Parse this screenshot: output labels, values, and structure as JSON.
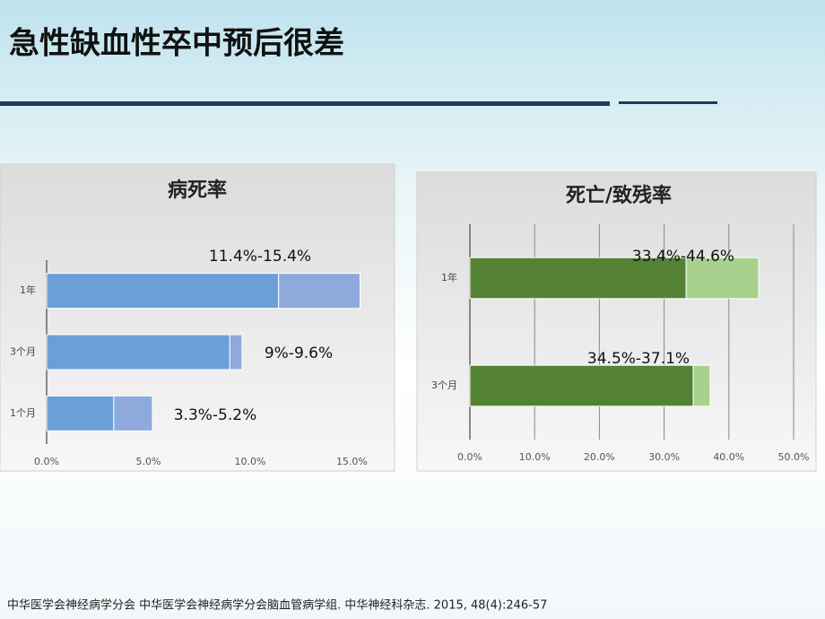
{
  "title": "急性缺血性卒中预后很差",
  "chart_data": [
    {
      "type": "bar",
      "orientation": "horizontal",
      "stacked": true,
      "title": "病死率",
      "categories": [
        "1年",
        "3个月",
        "1个月"
      ],
      "series": [
        {
          "color": "#6a9fd8",
          "values": [
            11.4,
            9,
            3.3
          ]
        },
        {
          "color": "#8eaadc",
          "values": [
            4.0,
            0.6,
            1.9
          ]
        }
      ],
      "annotations": [
        "11.4%-15.4%",
        "9%-9.6%",
        "3.3%-5.2%"
      ],
      "xlim": [
        0,
        16.7
      ],
      "xticks": [
        {
          "value": 0,
          "label": "0.0%"
        },
        {
          "value": 5,
          "label": "5.0%"
        },
        {
          "value": 10,
          "label": "10.0%"
        },
        {
          "value": 15,
          "label": "15.0%"
        }
      ],
      "grid": false
    },
    {
      "type": "bar",
      "orientation": "horizontal",
      "stacked": true,
      "title": "死亡/致残率",
      "categories": [
        "1年",
        "3个月"
      ],
      "series": [
        {
          "color": "#548235",
          "values": [
            33.4,
            34.5
          ]
        },
        {
          "color": "#a9d18e",
          "values": [
            11.2,
            2.6
          ]
        }
      ],
      "annotations": [
        "33.4%-44.6%",
        "34.5%-37.1%"
      ],
      "xlim": [
        0,
        50
      ],
      "xticks": [
        {
          "value": 0,
          "label": "0.0%"
        },
        {
          "value": 10,
          "label": "10.0%"
        },
        {
          "value": 20,
          "label": "20.0%"
        },
        {
          "value": 30,
          "label": "30.0%"
        },
        {
          "value": 40,
          "label": "40.0%"
        },
        {
          "value": 50,
          "label": "50.0%"
        }
      ],
      "grid": true
    }
  ],
  "footnote": "中华医学会神经病学分会  中华医学会神经病学分会脑血管病学组. 中华神经科杂志. 2015, 48(4):246-57"
}
